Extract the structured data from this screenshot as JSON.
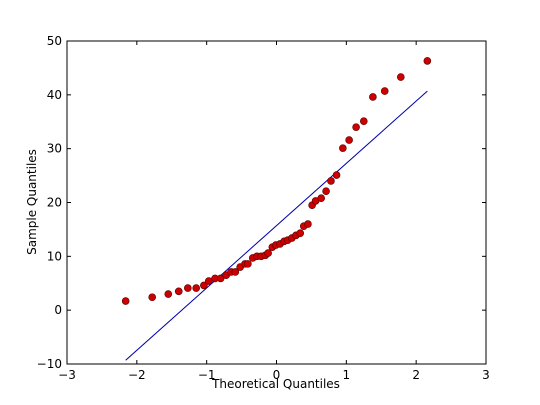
{
  "chart_data": {
    "type": "scatter",
    "xlabel": "Theoretical Quantiles",
    "ylabel": "Sample Quantiles",
    "xlim": [
      -3,
      3
    ],
    "ylim": [
      -10,
      50
    ],
    "xticks": [
      {
        "value": -3,
        "label": "−3"
      },
      {
        "value": -2,
        "label": "−2"
      },
      {
        "value": -1,
        "label": "−1"
      },
      0,
      1,
      2,
      3
    ],
    "yticks": [
      {
        "value": -10,
        "label": "−10"
      },
      0,
      10,
      20,
      30,
      40,
      50
    ],
    "points": {
      "color": "#cc0000",
      "x": [
        -2.16,
        -1.78,
        -1.55,
        -1.4,
        -1.27,
        -1.15,
        -1.04,
        -0.97,
        -0.88,
        -0.8,
        -0.72,
        -0.65,
        -0.59,
        -0.52,
        -0.45,
        -0.41,
        -0.34,
        -0.28,
        -0.22,
        -0.16,
        -0.12,
        -0.06,
        -0.01,
        0.05,
        0.11,
        0.16,
        0.22,
        0.28,
        0.34,
        0.39,
        0.45,
        0.51,
        0.56,
        0.64,
        0.71,
        0.78,
        0.86,
        0.95,
        1.04,
        1.14,
        1.25,
        1.38,
        1.55,
        1.78,
        2.16
      ],
      "values": [
        1.7,
        2.4,
        3.0,
        3.5,
        4.1,
        4.1,
        4.6,
        5.4,
        5.9,
        5.9,
        6.5,
        7.1,
        7.1,
        8.0,
        8.6,
        8.6,
        9.7,
        10.0,
        10.0,
        10.2,
        10.6,
        11.7,
        12.1,
        12.3,
        12.8,
        13.0,
        13.4,
        13.9,
        14.3,
        15.6,
        16.0,
        19.5,
        20.3,
        20.8,
        22.1,
        24.0,
        25.1,
        30.1,
        31.6,
        34.0,
        35.1,
        39.6,
        40.7,
        43.3,
        46.3
      ]
    },
    "reference_line": {
      "color": "#0000aa",
      "x": [
        -2.16,
        2.16
      ],
      "values": [
        -9.3,
        40.7
      ]
    }
  }
}
